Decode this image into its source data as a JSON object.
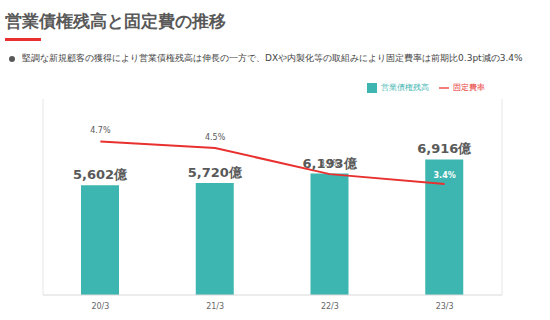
{
  "chart_data": {
    "type": "bar",
    "title": "営業債権残高と固定費の推移",
    "subtitle": "堅調な新規顧客の獲得により営業債権残高は伸長の一方で、DXや内製化等の取組みにより固定費率は前期比0.3pt減の3.4%",
    "categories": [
      "20/3",
      "21/3",
      "22/3",
      "23/3"
    ],
    "series": [
      {
        "name": "営業債権残高",
        "type": "bar",
        "color": "#3db5b1",
        "values": [
          5602,
          5720,
          6193,
          6916
        ],
        "value_labels": [
          "5,602億",
          "5,720億",
          "6,193億",
          "6,916億"
        ]
      },
      {
        "name": "固定費率",
        "type": "line",
        "color": "#e8312f",
        "axis": "y2",
        "values": [
          4.7,
          4.5,
          3.7,
          3.4
        ],
        "value_labels": [
          "4.7%",
          "4.5%",
          "3.7%",
          "3.4%"
        ]
      }
    ],
    "ylim": [
      0,
      10000
    ],
    "yticks": [],
    "y2lim": [
      0,
      6
    ],
    "y2ticks": [],
    "legend": "upper right",
    "data_labels": true,
    "tick_labels": "x",
    "grid": false
  }
}
